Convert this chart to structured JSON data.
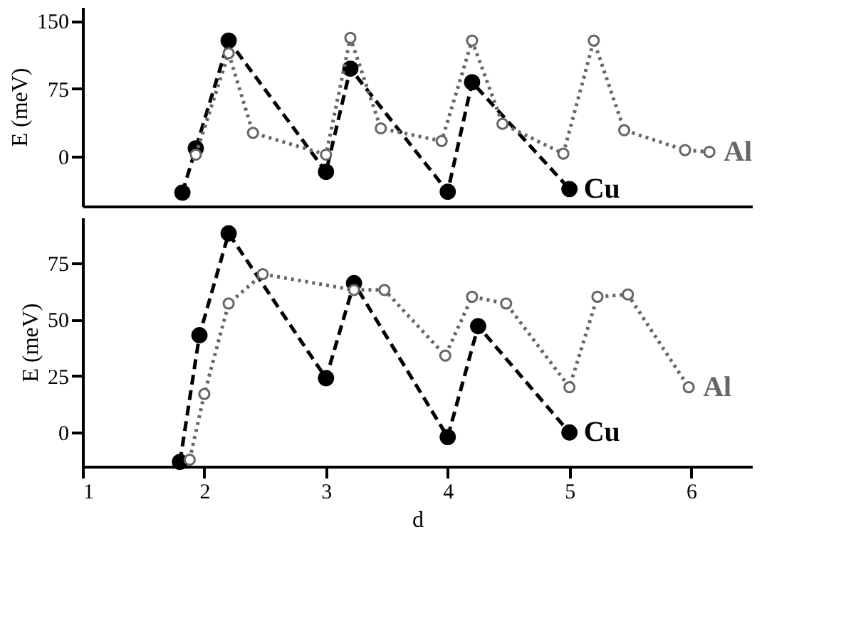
{
  "chart_data": [
    {
      "type": "line",
      "ylabel": "E (meV)",
      "xlim": [
        1,
        6.5
      ],
      "ylim": [
        -55,
        165
      ],
      "yticks": [
        0,
        75,
        150
      ],
      "tick_labels": "y",
      "grid": false,
      "series": [
        {
          "name": "Cu",
          "color": "#000000",
          "line_style": "dashed",
          "marker": "circle",
          "x": [
            1.82,
            1.93,
            2.2,
            3.0,
            3.2,
            4.0,
            4.2,
            5.0
          ],
          "values": [
            -40,
            9,
            128,
            -17,
            97,
            -39,
            82,
            -36
          ]
        },
        {
          "name": "Al",
          "color": "#666666",
          "line_style": "dotted",
          "marker": "circle",
          "x": [
            1.93,
            2.2,
            2.4,
            3.0,
            3.2,
            3.45,
            3.95,
            4.2,
            4.45,
            4.95,
            5.2,
            5.45,
            5.95,
            6.15
          ],
          "values": [
            2,
            114,
            26,
            2,
            131,
            31,
            17,
            128,
            36,
            3,
            128,
            29,
            7,
            5
          ]
        }
      ]
    },
    {
      "type": "line",
      "ylabel": "E (meV)",
      "xlabel": "d",
      "xlim": [
        1,
        6.5
      ],
      "xticks": [
        1,
        2,
        3,
        4,
        5,
        6
      ],
      "ylim": [
        -15,
        95
      ],
      "yticks": [
        0,
        25,
        50,
        75
      ],
      "grid": false,
      "series": [
        {
          "name": "Cu",
          "color": "#000000",
          "line_style": "dashed",
          "marker": "circle",
          "x": [
            1.8,
            1.96,
            2.2,
            3.0,
            3.23,
            4.0,
            4.25,
            5.0
          ],
          "values": [
            -13,
            43,
            88,
            24,
            66,
            -2,
            47,
            0
          ]
        },
        {
          "name": "Al",
          "color": "#666666",
          "line_style": "dotted",
          "marker": "circle",
          "x": [
            1.88,
            2.0,
            2.2,
            2.48,
            3.23,
            3.48,
            3.98,
            4.2,
            4.48,
            5.0,
            5.23,
            5.48,
            5.98
          ],
          "values": [
            -12,
            17,
            57,
            70,
            63,
            63,
            34,
            60,
            57,
            20,
            60,
            61,
            20
          ]
        }
      ]
    }
  ]
}
